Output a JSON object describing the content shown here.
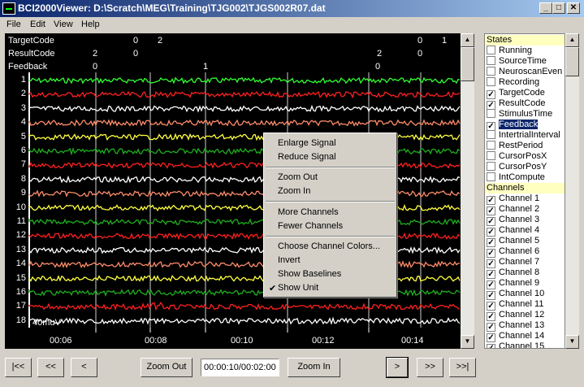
{
  "window": {
    "title": "BCI2000Viewer: D:\\Scratch\\MEG\\Training\\TJG002\\TJGS002R07.dat",
    "minimize": "_",
    "maximize": "□",
    "close": "✕"
  },
  "menu": [
    "File",
    "Edit",
    "View",
    "Help"
  ],
  "plot": {
    "states": [
      {
        "name": "TargetCode",
        "values": [
          {
            "text": "0",
            "x": 164
          },
          {
            "text": "2",
            "x": 194
          },
          {
            "text": "0",
            "x": 514
          },
          {
            "text": "1",
            "x": 544
          }
        ]
      },
      {
        "name": "ResultCode",
        "values": [
          {
            "text": "2",
            "x": 114
          },
          {
            "text": "0",
            "x": 164
          },
          {
            "text": "2",
            "x": 464
          },
          {
            "text": "0",
            "x": 514
          }
        ]
      },
      {
        "name": "Feedback",
        "values": [
          {
            "text": "0",
            "x": 114
          },
          {
            "text": "1",
            "x": 250
          },
          {
            "text": "0",
            "x": 462
          }
        ]
      }
    ],
    "channels": [
      "1",
      "2",
      "3",
      "4",
      "5",
      "6",
      "7",
      "8",
      "9",
      "10",
      "11",
      "12",
      "13",
      "14",
      "15",
      "16",
      "17",
      "18"
    ],
    "channel_colors": [
      "#32ff32",
      "#ff2020",
      "#ffffff",
      "#ff8c6a",
      "#ffff40",
      "#1fae1f",
      "#ff2020",
      "#ffffff",
      "#ff8c6a",
      "#ffff40",
      "#1fae1f",
      "#ff2020",
      "#ffffff",
      "#ff8c6a",
      "#ffff40",
      "#1fae1f",
      "#ff2020",
      "#ffffff"
    ],
    "scale": "40muV",
    "time_labels": [
      "00:06",
      "00:08",
      "00:10",
      "00:12",
      "00:14"
    ]
  },
  "sidebar": {
    "states_header": "States",
    "states": [
      {
        "label": "Running",
        "checked": false
      },
      {
        "label": "SourceTime",
        "checked": false
      },
      {
        "label": "NeuroscanEven",
        "checked": false
      },
      {
        "label": "Recording",
        "checked": false
      },
      {
        "label": "TargetCode",
        "checked": true
      },
      {
        "label": "ResultCode",
        "checked": true
      },
      {
        "label": "StimulusTime",
        "checked": false
      },
      {
        "label": "Feedback",
        "checked": true,
        "selected": true
      },
      {
        "label": "IntertrialInterval",
        "checked": false
      },
      {
        "label": "RestPeriod",
        "checked": false
      },
      {
        "label": "CursorPosX",
        "checked": false
      },
      {
        "label": "CursorPosY",
        "checked": false
      },
      {
        "label": "IntCompute",
        "checked": false
      }
    ],
    "channels_header": "Channels",
    "channels": [
      {
        "label": "Channel 1",
        "checked": true
      },
      {
        "label": "Channel 2",
        "checked": true
      },
      {
        "label": "Channel 3",
        "checked": true
      },
      {
        "label": "Channel 4",
        "checked": true
      },
      {
        "label": "Channel 5",
        "checked": true
      },
      {
        "label": "Channel 6",
        "checked": true
      },
      {
        "label": "Channel 7",
        "checked": true
      },
      {
        "label": "Channel 8",
        "checked": true
      },
      {
        "label": "Channel 9",
        "checked": true
      },
      {
        "label": "Channel 10",
        "checked": true
      },
      {
        "label": "Channel 11",
        "checked": true
      },
      {
        "label": "Channel 12",
        "checked": true
      },
      {
        "label": "Channel 13",
        "checked": true
      },
      {
        "label": "Channel 14",
        "checked": true
      },
      {
        "label": "Channel 15",
        "checked": true
      }
    ]
  },
  "controls": {
    "first": "|<<",
    "fast_back": "<<",
    "back": "<",
    "zoom_out": "Zoom Out",
    "time": "00:00:10/00:02:00",
    "zoom_in": "Zoom In",
    "forward": ">",
    "fast_forward": ">>",
    "last": ">>|"
  },
  "context_menu": {
    "items": [
      "Enlarge Signal",
      "Reduce Signal",
      "Zoom Out",
      "Zoom In",
      "More Channels",
      "Fewer Channels",
      "Choose Channel Colors...",
      "Invert",
      "Show Baselines",
      "Show Unit"
    ],
    "checked_item": "Show Unit",
    "check_mark": "✔"
  }
}
